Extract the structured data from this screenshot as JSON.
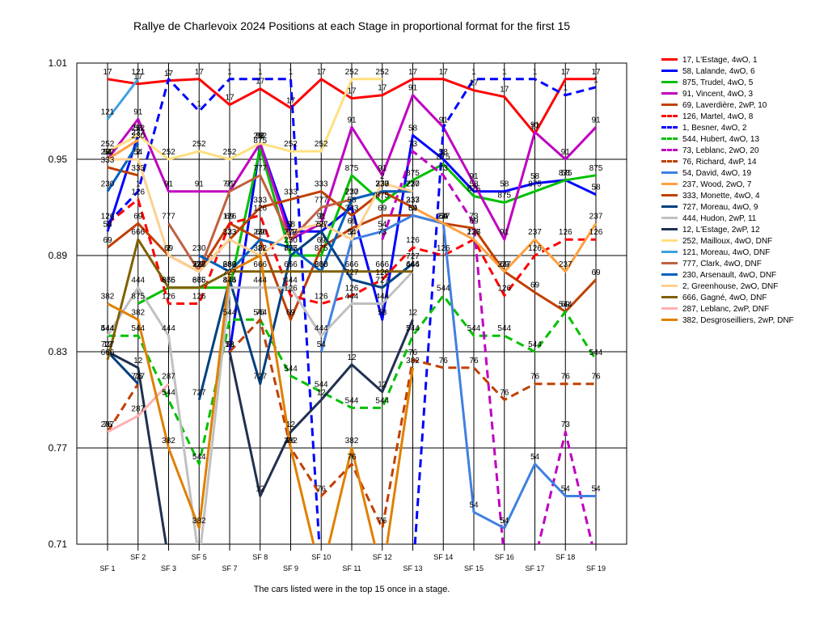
{
  "chart_data": {
    "type": "line",
    "title": "Rallye de Charlevoix 2024  Positions at each Stage in proportional format for the first 15",
    "footnote": "The cars listed were in the top 15 once in a stage.",
    "xlabel": "",
    "ylabel": "",
    "categories": [
      "SF 1",
      "SF 2",
      "SF 3",
      "SF 5",
      "SF 7",
      "SF 8",
      "SF 9",
      "SF 10",
      "SF 11",
      "SF 12",
      "SF 13",
      "SF 14",
      "SF 15",
      "SF 16",
      "SF 17",
      "SF 18",
      "SF 19"
    ],
    "ylim": [
      0.71,
      1.01
    ],
    "yticks": [
      "0.71",
      "0.77",
      "0.83",
      "0.89",
      "0.95",
      "1.01"
    ],
    "grid": "horizontal and vertical",
    "legend_position": "right",
    "series": [
      {
        "name": "17, L'Estage, 4wO, 1",
        "label": "17",
        "color": "#ff0000",
        "dash": false,
        "values": [
          1.0,
          0.997,
          0.999,
          1.0,
          0.984,
          0.994,
          0.982,
          1.0,
          0.988,
          0.99,
          1.0,
          1.0,
          0.993,
          0.989,
          0.966,
          1.0,
          1.0
        ]
      },
      {
        "name": "58, Lalande, 4wO, 6",
        "label": "58",
        "color": "#0000ff",
        "dash": false,
        "values": [
          0.905,
          0.965,
          null,
          null,
          0.83,
          0.96,
          0.905,
          0.905,
          0.92,
          0.85,
          0.965,
          0.95,
          0.93,
          0.93,
          0.935,
          0.937,
          0.928
        ]
      },
      {
        "name": "875, Trudel, 4wO, 5",
        "label": "875",
        "color": "#00c000",
        "dash": false,
        "values": [
          null,
          0.86,
          0.87,
          0.87,
          0.87,
          0.957,
          0.89,
          0.89,
          0.94,
          0.923,
          0.937,
          0.947,
          0.927,
          0.923,
          0.93,
          0.937,
          0.94
        ]
      },
      {
        "name": "91, Vincent, 4wO, 3",
        "label": "91",
        "color": "#c000c0",
        "dash": false,
        "values": [
          0.95,
          0.975,
          0.93,
          0.93,
          0.93,
          0.96,
          0.9,
          0.91,
          0.97,
          0.94,
          0.99,
          0.97,
          0.935,
          0.9,
          0.967,
          0.95,
          0.97
        ]
      },
      {
        "name": "69, Laverdière, 2wP, 10",
        "label": "69",
        "color": "#c04000",
        "dash": false,
        "values": [
          0.895,
          0.91,
          0.89,
          0.88,
          0.91,
          0.9,
          0.85,
          0.895,
          0.907,
          0.915,
          0.915,
          0.91,
          0.907,
          0.88,
          0.867,
          0.855,
          0.875
        ]
      },
      {
        "name": "126, Martel, 4wO, 8",
        "label": "126",
        "color": "#ff0000",
        "dash": true,
        "values": [
          0.91,
          0.925,
          0.86,
          0.86,
          0.91,
          0.915,
          0.865,
          0.86,
          0.865,
          0.875,
          0.895,
          0.89,
          0.9,
          0.865,
          0.89,
          0.9,
          0.9
        ]
      },
      {
        "name": "1, Besner, 4wO, 2",
        "label": "1",
        "color": "#0000ff",
        "dash": true,
        "values": [
          0.91,
          0.93,
          1.0,
          0.98,
          1.0,
          1.0,
          1.0,
          0.69,
          0.69,
          0.69,
          0.69,
          0.97,
          1.0,
          1.0,
          1.0,
          0.99,
          0.995
        ]
      },
      {
        "name": "544, Hubert, 4wO, 13",
        "label": "544",
        "color": "#00c000",
        "dash": true,
        "values": [
          0.84,
          0.84,
          0.8,
          0.76,
          0.85,
          0.85,
          0.815,
          0.805,
          0.795,
          0.795,
          0.84,
          0.865,
          0.84,
          0.84,
          0.83,
          0.855,
          0.825
        ]
      },
      {
        "name": "73, Leblanc, 2wO, 20",
        "label": "73",
        "color": "#c000c0",
        "dash": true,
        "values": [
          null,
          null,
          null,
          null,
          null,
          null,
          null,
          null,
          null,
          0.9,
          0.955,
          0.94,
          0.91,
          0.7,
          0.7,
          0.78,
          0.7
        ]
      },
      {
        "name": "76, Richard, 4wP, 14",
        "label": "76",
        "color": "#c04000",
        "dash": true,
        "values": [
          0.78,
          0.81,
          null,
          null,
          0.83,
          0.85,
          0.77,
          0.74,
          0.76,
          0.72,
          0.825,
          0.82,
          0.82,
          0.8,
          0.81,
          0.81,
          0.81
        ]
      },
      {
        "name": "54, David, 4wO, 19",
        "label": "54",
        "color": "#4080e0",
        "dash": false,
        "values": [
          0.95,
          0.95,
          null,
          null,
          null,
          null,
          null,
          0.83,
          0.9,
          0.905,
          0.915,
          0.91,
          0.73,
          0.72,
          0.76,
          0.74,
          0.74
        ]
      },
      {
        "name": "237, Wood, 2wO, 7",
        "label": "237",
        "color": "#ffa040",
        "dash": false,
        "values": [
          0.95,
          0.962,
          null,
          null,
          null,
          null,
          null,
          null,
          null,
          null,
          0.92,
          0.91,
          0.9,
          0.88,
          0.9,
          0.88,
          0.91
        ]
      },
      {
        "name": "333, Monette, 4wO, 4",
        "label": "333",
        "color": "#c04000",
        "dash": false,
        "values": [
          0.945,
          0.94,
          null,
          0.88,
          0.9,
          0.92,
          0.925,
          0.93,
          0.915,
          0.93,
          0.92,
          null,
          null,
          null,
          null,
          null,
          null
        ]
      },
      {
        "name": "727, Moreau, 4wO, 9",
        "label": "727",
        "color": "#004080",
        "dash": false,
        "values": [
          0.83,
          0.81,
          null,
          0.8,
          0.875,
          0.81,
          0.89,
          0.905,
          0.875,
          0.87,
          0.885,
          null,
          null,
          null,
          null,
          null,
          null
        ]
      },
      {
        "name": "444, Hudon, 2wP, 11",
        "label": "444",
        "color": "#c0c0c0",
        "dash": false,
        "values": [
          0.84,
          0.87,
          0.84,
          0.7,
          0.87,
          0.87,
          0.87,
          0.84,
          0.86,
          0.86,
          0.88,
          null,
          null,
          null,
          null,
          null,
          null
        ]
      },
      {
        "name": "12, L'Estage, 2wP, 12",
        "label": "12",
        "color": "#203050",
        "dash": false,
        "values": [
          0.83,
          0.82,
          0.7,
          null,
          0.83,
          0.74,
          0.78,
          0.8,
          0.822,
          0.805,
          0.85,
          null,
          null,
          null,
          null,
          null,
          null
        ]
      },
      {
        "name": "252, Mailloux, 4wO,  DNF",
        "label": "252",
        "color": "#ffe080",
        "dash": false,
        "values": [
          0.955,
          0.965,
          0.95,
          0.955,
          0.95,
          0.96,
          0.955,
          0.955,
          1.0,
          1.0,
          null,
          null,
          null,
          null,
          null,
          null,
          null
        ]
      },
      {
        "name": "121, Moreau, 4wO,  DNF",
        "label": "121",
        "color": "#40a0e0",
        "dash": false,
        "values": [
          0.975,
          1.0,
          null,
          null,
          null,
          null,
          null,
          null,
          null,
          null,
          null,
          null,
          null,
          null,
          null,
          null,
          null
        ]
      },
      {
        "name": "777, Clark, 4wO,  DNF",
        "label": "777",
        "color": "#c06040",
        "dash": false,
        "values": [
          null,
          null,
          0.91,
          0.88,
          0.93,
          0.94,
          0.9,
          0.92,
          0.925,
          0.93,
          0.93,
          null,
          null,
          null,
          null,
          null,
          null
        ]
      },
      {
        "name": "230, Arsenault, 4wO,  DNF",
        "label": "230",
        "color": "#0060c0",
        "dash": false,
        "values": [
          0.93,
          0.96,
          null,
          0.89,
          0.88,
          0.9,
          0.895,
          0.88,
          0.925,
          0.93,
          0.93,
          null,
          null,
          null,
          null,
          null,
          null
        ]
      },
      {
        "name": "2, Greenhouse, 2wO,  DNF",
        "label": "2",
        "color": "#ffd090",
        "dash": false,
        "values": [
          0.95,
          0.95,
          0.89,
          0.88,
          0.9,
          0.89,
          0.905,
          0.91,
          0.9,
          0.935,
          0.93,
          null,
          null,
          null,
          null,
          null,
          null
        ]
      },
      {
        "name": "666, Gagné, 4wO,  DNF",
        "label": "666",
        "color": "#806000",
        "dash": false,
        "values": [
          0.825,
          0.9,
          0.87,
          0.87,
          0.88,
          0.88,
          0.88,
          0.88,
          0.88,
          0.88,
          0.88,
          null,
          null,
          null,
          null,
          null,
          null
        ]
      },
      {
        "name": "287, Leblanc, 2wP,  DNF",
        "label": "287",
        "color": "#ffb0b0",
        "dash": false,
        "values": [
          0.78,
          0.79,
          0.81,
          null,
          null,
          null,
          null,
          null,
          null,
          null,
          null,
          null,
          null,
          null,
          null,
          null,
          null
        ]
      },
      {
        "name": "382, Desgroseilliers, 2wP, DNF",
        "label": "382",
        "color": "#e08000",
        "dash": false,
        "values": [
          0.86,
          0.85,
          0.77,
          0.72,
          0.88,
          0.89,
          0.77,
          0.69,
          0.77,
          0.69,
          0.82,
          null,
          null,
          null,
          null,
          null,
          null
        ]
      }
    ]
  }
}
